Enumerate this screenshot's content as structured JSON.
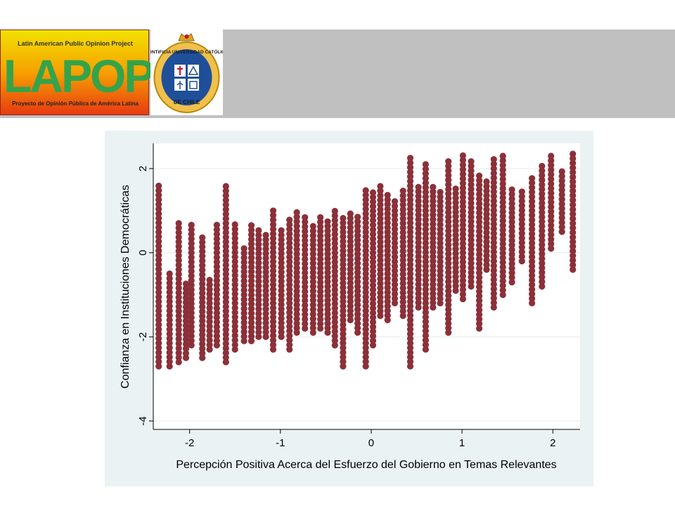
{
  "logos": {
    "lapop": {
      "top_text": "Latin American Public Opinion Project",
      "word": "LAPOP",
      "bottom_text": "Proyecto de Opinión Pública de América Latina"
    },
    "puc": {
      "arc_text": "PONTIFICIA UNIVERSIDAD CATÓLICA",
      "lower_text": "DE CHILE"
    }
  },
  "colors": {
    "marker": "#8b3039",
    "plot_background": "#ffffff",
    "panel_background": "#eaf2f3",
    "header_bar": "#c0c0c0"
  },
  "chart_data": {
    "type": "scatter",
    "xlabel": "Percepción Positiva Acerca del Esfuerzo del Gobierno en Temas Relevantes",
    "ylabel": "Confianza en Instituciones Democráticas",
    "xlim": [
      -2.4,
      2.3
    ],
    "ylim": [
      -4.2,
      2.6
    ],
    "xticks": [
      -2,
      -1,
      0,
      1,
      2
    ],
    "xtick_labels": [
      "-2",
      "-1",
      "0",
      "1",
      "2"
    ],
    "yticks": [
      -4,
      -2,
      0,
      2
    ],
    "ytick_labels": [
      "-4",
      "-2",
      "0",
      "2"
    ],
    "grid": "horizontal",
    "legend": "none",
    "x_columns": [
      -2.34,
      -2.22,
      -2.12,
      -2.04,
      -1.98,
      -1.86,
      -1.78,
      -1.7,
      -1.6,
      -1.5,
      -1.4,
      -1.32,
      -1.24,
      -1.16,
      -1.08,
      -0.99,
      -0.9,
      -0.82,
      -0.73,
      -0.64,
      -0.56,
      -0.48,
      -0.4,
      -0.31,
      -0.23,
      -0.15,
      -0.06,
      0.02,
      0.1,
      0.18,
      0.26,
      0.35,
      0.43,
      0.52,
      0.6,
      0.68,
      0.76,
      0.85,
      0.93,
      1.01,
      1.1,
      1.19,
      1.27,
      1.35,
      1.45,
      1.55,
      1.66,
      1.77,
      1.88,
      1.98,
      2.1,
      2.22
    ],
    "column_ranges": [
      [
        -2.7,
        1.6
      ],
      [
        -2.7,
        -0.5
      ],
      [
        -2.6,
        0.8
      ],
      [
        -2.5,
        -0.7
      ],
      [
        -2.2,
        0.7
      ],
      [
        -2.5,
        0.4
      ],
      [
        -2.3,
        -0.6
      ],
      [
        -2.2,
        0.7
      ],
      [
        -2.6,
        1.6
      ],
      [
        -2.3,
        0.7
      ],
      [
        -2.1,
        0.2
      ],
      [
        -2.1,
        0.7
      ],
      [
        -2.0,
        0.6
      ],
      [
        -2.0,
        0.5
      ],
      [
        -2.3,
        1.0
      ],
      [
        -2.0,
        0.6
      ],
      [
        -2.3,
        0.8
      ],
      [
        -1.9,
        1.0
      ],
      [
        -1.8,
        0.9
      ],
      [
        -1.9,
        0.7
      ],
      [
        -1.8,
        0.9
      ],
      [
        -1.9,
        0.8
      ],
      [
        -2.2,
        1.0
      ],
      [
        -2.7,
        0.9
      ],
      [
        -1.6,
        1.0
      ],
      [
        -1.9,
        0.9
      ],
      [
        -2.7,
        1.5
      ],
      [
        -2.2,
        1.5
      ],
      [
        -1.5,
        1.6
      ],
      [
        -1.6,
        1.4
      ],
      [
        -1.2,
        1.3
      ],
      [
        -1.5,
        1.5
      ],
      [
        -2.7,
        2.3
      ],
      [
        -1.3,
        1.6
      ],
      [
        -2.3,
        2.2
      ],
      [
        -1.3,
        1.6
      ],
      [
        -1.2,
        1.5
      ],
      [
        -1.9,
        2.2
      ],
      [
        -0.9,
        1.6
      ],
      [
        -1.1,
        2.4
      ],
      [
        -0.8,
        2.2
      ],
      [
        -1.8,
        1.9
      ],
      [
        -0.4,
        1.7
      ],
      [
        -1.3,
        2.3
      ],
      [
        -1.0,
        2.4
      ],
      [
        -0.7,
        1.6
      ],
      [
        -0.2,
        1.5
      ],
      [
        -1.2,
        1.8
      ],
      [
        -0.8,
        2.1
      ],
      [
        0.1,
        2.4
      ],
      [
        0.5,
        2.0
      ],
      [
        -0.4,
        2.4
      ]
    ]
  }
}
